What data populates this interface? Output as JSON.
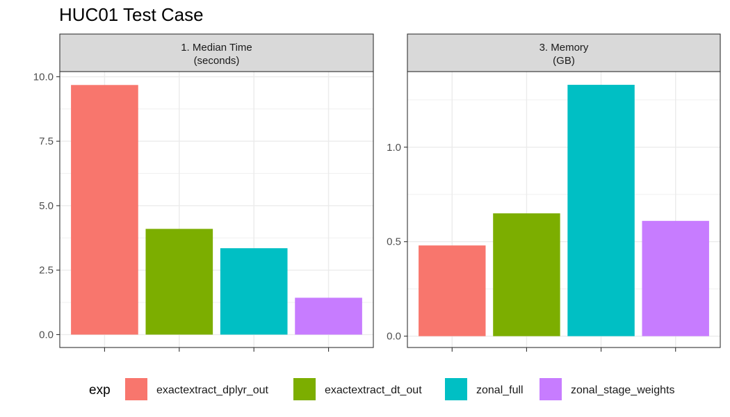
{
  "title": "HUC01 Test Case",
  "chart_data": {
    "type": "bar",
    "title": "HUC01 Test Case",
    "categories": [
      "exactextract_dplyr_out",
      "exactextract_dt_out",
      "zonal_full",
      "zonal_stage_weights"
    ],
    "colors": [
      "#F8766D",
      "#7CAE00",
      "#00BFC4",
      "#C77CFF"
    ],
    "legend": {
      "title": "exp",
      "position": "bottom"
    },
    "grid": true,
    "panels": [
      {
        "strip": [
          "1. Median Time",
          "(seconds)"
        ],
        "values": [
          9.68,
          4.1,
          3.35,
          1.43
        ],
        "ylim": [
          -0.5,
          10.2
        ],
        "yticks": [
          0.0,
          2.5,
          5.0,
          7.5,
          10.0
        ],
        "yticklabels": [
          "0.0",
          "2.5",
          "5.0",
          "7.5",
          "10.0"
        ]
      },
      {
        "strip": [
          "3. Memory",
          "(GB)"
        ],
        "values": [
          0.48,
          0.65,
          1.33,
          0.61
        ],
        "ylim": [
          -0.06,
          1.4
        ],
        "yticks": [
          0.0,
          0.5,
          1.0
        ],
        "yticklabels": [
          "0.0",
          "0.5",
          "1.0"
        ]
      }
    ]
  }
}
